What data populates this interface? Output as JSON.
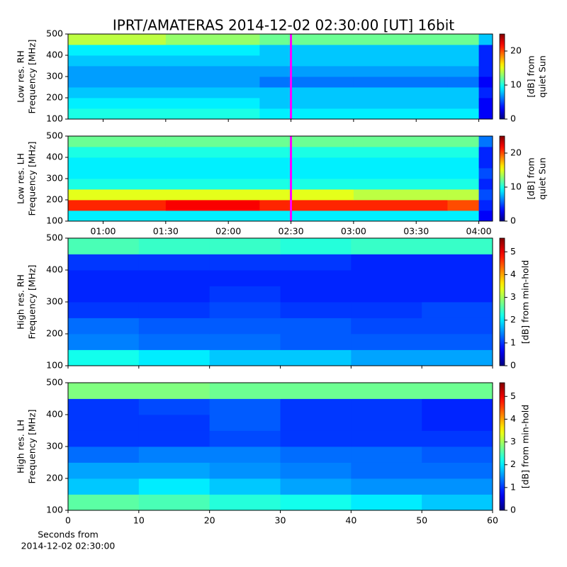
{
  "chart_data": [
    {
      "type": "heatmap",
      "title": "IPRT/AMATERAS 2014-12-02 02:30:00 [UT]   16bit",
      "ylabel": [
        "Low res. RH",
        "Frequency [MHz]"
      ],
      "xlim": [
        0.72,
        4.11
      ],
      "xticks": [
        1,
        1.5,
        2,
        2.5,
        3,
        3.5,
        4
      ],
      "xtick_labels": false,
      "ylim": [
        100,
        500
      ],
      "yticks": [
        100,
        200,
        300,
        400,
        500
      ],
      "xbins": [
        0.72,
        1.5,
        2.25,
        3,
        3.75,
        4,
        4.11
      ],
      "ybins": [
        100,
        150,
        200,
        250,
        300,
        350,
        400,
        450,
        500
      ],
      "z": [
        [
          10,
          10,
          9,
          9,
          9,
          3
        ],
        [
          9,
          9,
          8,
          8,
          8,
          3
        ],
        [
          8,
          8,
          8,
          8,
          8,
          4
        ],
        [
          7,
          7,
          6,
          6,
          6,
          3
        ],
        [
          7,
          7,
          7,
          7,
          7,
          4
        ],
        [
          8,
          8,
          8,
          8,
          8,
          4
        ],
        [
          9,
          9,
          8,
          8,
          8,
          4
        ],
        [
          14,
          13,
          12,
          12,
          12,
          8
        ]
      ],
      "marker_x": 2.5,
      "marker_color": "#ff00ff",
      "colorbar": {
        "label": [
          "[dB] from",
          "quiet Sun"
        ],
        "lim": [
          0,
          25
        ],
        "ticks": [
          0,
          10,
          20
        ]
      }
    },
    {
      "type": "heatmap",
      "ylabel": [
        "Low res. LH",
        "Frequency [MHz]"
      ],
      "xlim": [
        0.72,
        4.11
      ],
      "xticks": [
        {
          "value": 1,
          "label": "01:00"
        },
        {
          "value": 1.5,
          "label": "01:30"
        },
        {
          "value": 2,
          "label": "02:00"
        },
        {
          "value": 2.5,
          "label": "02:30"
        },
        {
          "value": 3,
          "label": "03:00"
        },
        {
          "value": 3.5,
          "label": "03:30"
        },
        {
          "value": 4,
          "label": "04:00"
        }
      ],
      "xtick_labels": true,
      "ylim": [
        100,
        500
      ],
      "yticks": [
        100,
        200,
        300,
        400,
        500
      ],
      "xbins": [
        0.72,
        1.5,
        2.25,
        3,
        3.75,
        4,
        4.11
      ],
      "ybins": [
        100,
        150,
        200,
        250,
        300,
        350,
        400,
        450,
        500
      ],
      "z": [
        [
          9,
          9,
          9,
          9,
          9,
          3
        ],
        [
          21,
          22,
          21,
          21,
          20,
          4
        ],
        [
          15,
          15,
          15,
          14,
          14,
          5
        ],
        [
          10,
          10,
          10,
          10,
          10,
          4
        ],
        [
          9,
          9,
          9,
          9,
          9,
          5
        ],
        [
          9,
          9,
          9,
          9,
          9,
          4
        ],
        [
          10,
          10,
          10,
          10,
          10,
          4
        ],
        [
          12,
          12,
          12,
          12,
          12,
          6
        ]
      ],
      "marker_x": 2.5,
      "marker_color": "#ff00ff",
      "colorbar": {
        "label": [
          "[dB] from",
          "quiet Sun"
        ],
        "lim": [
          0,
          25
        ],
        "ticks": [
          0,
          10,
          20
        ]
      }
    },
    {
      "type": "heatmap",
      "ylabel": [
        "High res. RH",
        "Frequency [MHz]"
      ],
      "xlim": [
        0,
        60
      ],
      "xticks": [
        0,
        10,
        20,
        30,
        40,
        50,
        60
      ],
      "xtick_labels": false,
      "ylim": [
        100,
        500
      ],
      "yticks": [
        100,
        200,
        300,
        400,
        500
      ],
      "xbins": [
        0,
        10,
        20,
        30,
        40,
        50,
        60
      ],
      "ybins": [
        100,
        150,
        200,
        250,
        300,
        350,
        400,
        450,
        500
      ],
      "z": [
        [
          2.2,
          2,
          1.8,
          1.8,
          1.6,
          1.6
        ],
        [
          1.4,
          1.3,
          1.3,
          1.2,
          1.2,
          1.2
        ],
        [
          1.3,
          1.2,
          1.2,
          1.2,
          1.1,
          1.1
        ],
        [
          1,
          1,
          1.1,
          1,
          1,
          1.1
        ],
        [
          0.9,
          0.9,
          1,
          0.9,
          0.9,
          0.9
        ],
        [
          0.9,
          0.9,
          0.9,
          0.9,
          0.9,
          0.9
        ],
        [
          1,
          1,
          1,
          1,
          0.9,
          0.9
        ],
        [
          2.5,
          2.4,
          2.4,
          2.3,
          2.4,
          2.4
        ]
      ],
      "colorbar": {
        "label": [
          "[dB] from min-hold"
        ],
        "lim": [
          0,
          5.6
        ],
        "ticks": [
          0,
          1,
          2,
          3,
          4,
          5
        ]
      }
    },
    {
      "type": "heatmap",
      "ylabel": [
        "High res. LH",
        "Frequency [MHz]"
      ],
      "xlabel": [
        "Seconds from",
        "2014-12-02 02:30:00"
      ],
      "xlim": [
        0,
        60
      ],
      "xticks": [
        0,
        10,
        20,
        30,
        40,
        50,
        60
      ],
      "xtick_labels": true,
      "ylim": [
        100,
        500
      ],
      "yticks": [
        100,
        200,
        300,
        400,
        500
      ],
      "xbins": [
        0,
        10,
        20,
        30,
        40,
        50,
        60
      ],
      "ybins": [
        100,
        150,
        200,
        250,
        300,
        350,
        400,
        450,
        500
      ],
      "z": [
        [
          2.6,
          2.5,
          2.3,
          2.2,
          2,
          1.8
        ],
        [
          1.8,
          2,
          1.8,
          1.6,
          1.5,
          1.5
        ],
        [
          1.6,
          1.6,
          1.5,
          1.4,
          1.3,
          1.3
        ],
        [
          1.3,
          1.4,
          1.4,
          1.3,
          1.3,
          1.2
        ],
        [
          1,
          1,
          1.1,
          1,
          1,
          1
        ],
        [
          1,
          1,
          1.2,
          1,
          1,
          0.9
        ],
        [
          1,
          1.1,
          1.2,
          1,
          1,
          0.9
        ],
        [
          2.8,
          2.8,
          2.7,
          2.7,
          2.7,
          2.7
        ]
      ],
      "colorbar": {
        "label": [
          "[dB] from min-hold"
        ],
        "lim": [
          0,
          5.6
        ],
        "ticks": [
          0,
          1,
          2,
          3,
          4,
          5
        ]
      }
    }
  ]
}
